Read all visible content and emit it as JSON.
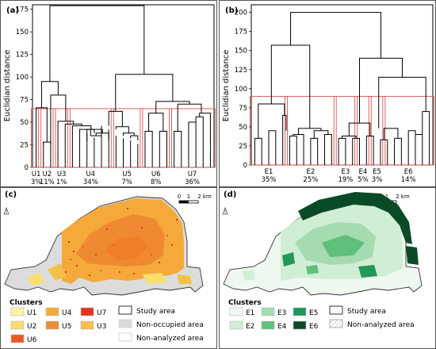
{
  "figure": {
    "colors": {
      "frame": "#555555",
      "dendro": "#000000",
      "cutline": "#d9534f"
    }
  },
  "chart_data": [
    {
      "type": "dendrogram",
      "panel_label": "(a)",
      "ylabel": "Euclidian distance",
      "ylim": [
        0,
        180
      ],
      "yticks": [
        0,
        25,
        50,
        75,
        100,
        125,
        150,
        175
      ],
      "cut_height": 65,
      "leaves": [
        37,
        28,
        38,
        26,
        26,
        30,
        28,
        38,
        33,
        46,
        42,
        35,
        32,
        30,
        26,
        38,
        30,
        37,
        22,
        35,
        24,
        38,
        46,
        36,
        26
      ],
      "links": [
        [
          1,
          2,
          25,
          25,
          28
        ],
        [
          7,
          8,
          29,
          38,
          42
        ],
        [
          7.5,
          9,
          42,
          33,
          35
        ],
        [
          8.25,
          10,
          35,
          30,
          38
        ],
        [
          6,
          9.125,
          28,
          38,
          42
        ],
        [
          5,
          7.5625,
          30,
          42,
          46
        ],
        [
          4,
          6.28125,
          26,
          46,
          48
        ],
        [
          3,
          5.140625,
          26,
          48,
          51
        ],
        [
          0,
          1.5,
          37,
          28,
          66
        ],
        [
          2,
          4.0703125,
          38,
          51,
          80
        ],
        [
          0.75,
          3.03515625,
          66,
          80,
          95
        ],
        [
          13,
          14,
          32,
          30,
          35
        ],
        [
          12,
          13.5,
          35,
          35,
          38
        ],
        [
          15,
          16,
          38,
          30,
          40
        ],
        [
          17,
          18,
          37,
          22,
          40
        ],
        [
          11,
          12.75,
          42,
          38,
          45
        ],
        [
          19,
          20,
          35,
          24,
          40
        ],
        [
          21,
          22,
          38,
          46,
          50
        ],
        [
          22.0,
          23,
          50,
          36,
          56
        ],
        [
          22.5,
          24,
          56,
          26,
          60
        ],
        [
          19.5,
          22.75,
          40,
          60,
          70
        ],
        [
          10,
          11.875,
          46,
          45,
          62
        ],
        [
          15.5,
          17.5,
          40,
          40,
          60
        ],
        [
          16.5,
          21.125,
          60,
          70,
          73
        ],
        [
          10.9375,
          18.8125,
          62,
          73,
          103
        ],
        [
          1.892578125,
          14.875,
          95,
          103,
          179
        ]
      ],
      "clusters": [
        {
          "name": "U1",
          "share": "3%"
        },
        {
          "name": "U2",
          "share": "11%"
        },
        {
          "name": "U3",
          "share": "1%"
        },
        {
          "name": "U4",
          "share": "34%"
        },
        {
          "name": "U5",
          "share": "7%"
        },
        {
          "name": "U6",
          "share": "8%"
        },
        {
          "name": "U7",
          "share": "36%"
        }
      ]
    },
    {
      "type": "dendrogram",
      "panel_label": "(b)",
      "ylabel": "Euclidian distance",
      "ylim": [
        0,
        210
      ],
      "yticks": [
        0,
        25,
        50,
        75,
        100,
        125,
        150,
        175,
        200
      ],
      "cut_height": 90,
      "leaves": [
        35,
        22,
        38,
        44,
        42,
        35,
        32,
        28,
        30,
        26,
        32,
        30,
        34,
        32,
        30,
        30,
        38,
        34,
        32,
        28,
        35,
        30,
        44,
        32,
        26,
        60
      ],
      "links": [
        [
          2,
          3,
          38,
          44,
          45
        ],
        [
          4,
          4.5,
          42,
          45,
          65
        ],
        [
          0,
          1,
          35,
          22,
          35
        ],
        [
          0.5,
          4.25,
          35,
          65,
          80
        ],
        [
          5,
          6,
          35,
          32,
          38
        ],
        [
          5.5,
          7,
          38,
          28,
          40
        ],
        [
          8,
          9,
          30,
          26,
          35
        ],
        [
          10,
          11,
          32,
          30,
          40
        ],
        [
          8.5,
          10.5,
          35,
          40,
          45
        ],
        [
          6.25,
          9.5,
          40,
          45,
          48
        ],
        [
          2.375,
          7.875,
          80,
          48,
          157
        ],
        [
          12,
          13,
          34,
          32,
          35
        ],
        [
          14,
          15,
          30,
          30,
          35
        ],
        [
          12.5,
          14.5,
          35,
          35,
          38
        ],
        [
          16,
          17,
          38,
          34,
          38
        ],
        [
          18,
          19,
          32,
          28,
          33
        ],
        [
          20,
          21,
          35,
          30,
          35
        ],
        [
          18.5,
          20.5,
          33,
          35,
          48
        ],
        [
          22,
          23,
          44,
          32,
          45
        ],
        [
          23,
          24,
          45,
          26,
          40
        ],
        [
          24,
          25,
          40,
          60,
          70
        ],
        [
          17.75,
          24.5,
          48,
          70,
          115
        ],
        [
          13.5,
          16.5,
          38,
          38,
          55
        ],
        [
          15,
          21.125,
          55,
          115,
          140
        ],
        [
          5.125,
          18.0625,
          157,
          140,
          200
        ]
      ],
      "clusters": [
        {
          "name": "E1",
          "share": "35%"
        },
        {
          "name": "E2",
          "share": "25%"
        },
        {
          "name": "E3",
          "share": "19%"
        },
        {
          "name": "E4",
          "share": "5%"
        },
        {
          "name": "E5",
          "share": "3%"
        },
        {
          "name": "E6",
          "share": "14%"
        }
      ]
    }
  ],
  "map_c": {
    "panel_label": "(c)",
    "scale_ticks": [
      "0",
      "1",
      "2 km"
    ],
    "legend_title": "Clusters",
    "clusters": [
      {
        "name": "U1",
        "color": "#fdf3a0"
      },
      {
        "name": "U4",
        "color": "#f6a93b"
      },
      {
        "name": "U7",
        "color": "#e3331c"
      },
      {
        "name": "U2",
        "color": "#f9dd6d"
      },
      {
        "name": "U5",
        "color": "#f08a32"
      },
      {
        "name": "U3",
        "color": "#f4c048"
      },
      {
        "name": "U6",
        "color": "#e85a22"
      }
    ],
    "study_area_label": "Study area",
    "non_occupied_label": "Non-occupied area",
    "non_analyzed_label": "Non-analyzed area",
    "non_occupied_color": "#d9d9d9"
  },
  "map_d": {
    "panel_label": "(d)",
    "scale_ticks": [
      "0",
      "1",
      "2 km"
    ],
    "legend_title": "Clusters",
    "clusters": [
      {
        "name": "E1",
        "color": "#f1faf2"
      },
      {
        "name": "E3",
        "color": "#a5dbb0"
      },
      {
        "name": "E5",
        "color": "#23965a"
      },
      {
        "name": "E2",
        "color": "#d0eed4"
      },
      {
        "name": "E4",
        "color": "#5fbf7c"
      },
      {
        "name": "E6",
        "color": "#0b4a26"
      }
    ],
    "study_area_label": "Study area",
    "non_analyzed_label": "Non-analyzed area"
  }
}
